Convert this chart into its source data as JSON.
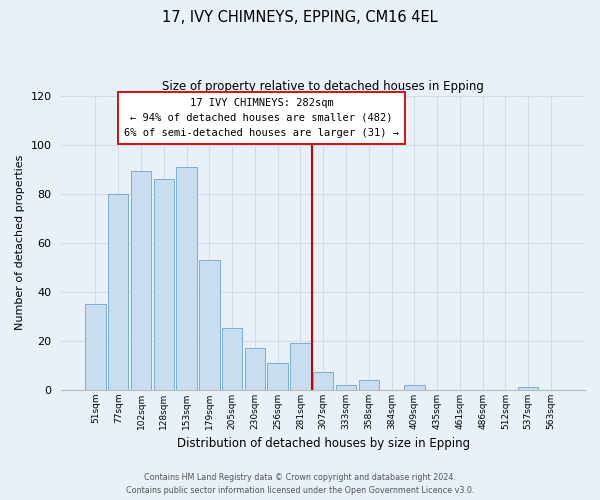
{
  "title": "17, IVY CHIMNEYS, EPPING, CM16 4EL",
  "subtitle": "Size of property relative to detached houses in Epping",
  "xlabel": "Distribution of detached houses by size in Epping",
  "ylabel": "Number of detached properties",
  "bar_color": "#c8ddf0",
  "bar_edge_color": "#7aaed0",
  "bg_color": "#e8f0f8",
  "grid_color": "#d0dce8",
  "categories": [
    "51sqm",
    "77sqm",
    "102sqm",
    "128sqm",
    "153sqm",
    "179sqm",
    "205sqm",
    "230sqm",
    "256sqm",
    "281sqm",
    "307sqm",
    "333sqm",
    "358sqm",
    "384sqm",
    "409sqm",
    "435sqm",
    "461sqm",
    "486sqm",
    "512sqm",
    "537sqm",
    "563sqm"
  ],
  "values": [
    35,
    80,
    89,
    86,
    91,
    53,
    25,
    17,
    11,
    19,
    7,
    2,
    4,
    0,
    2,
    0,
    0,
    0,
    0,
    1,
    0
  ],
  "vline_index": 9.5,
  "vline_color": "#cc0000",
  "annotation_title": "17 IVY CHIMNEYS: 282sqm",
  "annotation_line1": "← 94% of detached houses are smaller (482)",
  "annotation_line2": "6% of semi-detached houses are larger (31) →",
  "annotation_box_color": "#ffffff",
  "annotation_box_edge": "#cc0000",
  "ylim": [
    0,
    120
  ],
  "yticks": [
    0,
    20,
    40,
    60,
    80,
    100,
    120
  ],
  "footer1": "Contains HM Land Registry data © Crown copyright and database right 2024.",
  "footer2": "Contains public sector information licensed under the Open Government Licence v3.0."
}
